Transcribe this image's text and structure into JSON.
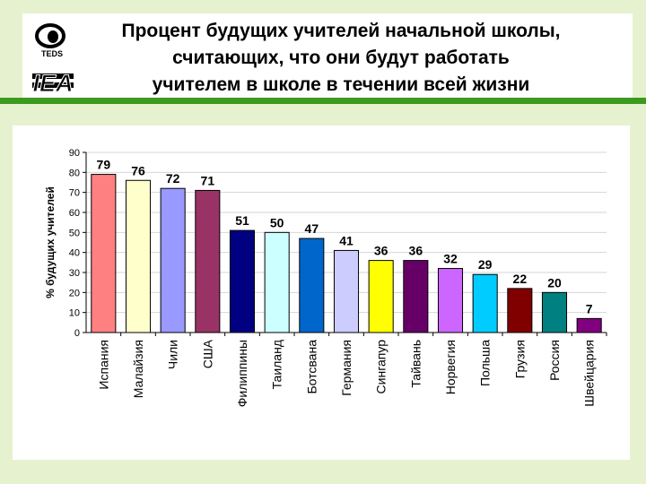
{
  "slide": {
    "title_lines": [
      "Процент будущих учителей начальной школы,",
      "считающих, что они будут  работать",
      "учителем в школе в течении всей жизни"
    ],
    "logos": {
      "teds": "TEDS",
      "iea": "IEA"
    }
  },
  "chart_data": {
    "type": "bar",
    "title": "",
    "xlabel": "",
    "ylabel": "% будущих учителей",
    "ylim": [
      0,
      90
    ],
    "yticks": [
      0,
      10,
      20,
      30,
      40,
      50,
      60,
      70,
      80,
      90
    ],
    "grid": true,
    "legend": "none",
    "categories": [
      "Испания",
      "Малайзия",
      "Чили",
      "США",
      "Филиппины",
      "Таиланд",
      "Ботсвана",
      "Германия",
      "Сингапур",
      "Тайвань",
      "Норвегия",
      "Польша",
      "Грузия",
      "Россия",
      "Швейцария"
    ],
    "values": [
      79,
      76,
      72,
      71,
      51,
      50,
      47,
      41,
      36,
      36,
      32,
      29,
      22,
      20,
      7
    ],
    "data_labels": [
      "79",
      "76",
      "72",
      "71",
      "51",
      "50",
      "47",
      "41",
      "36",
      "36",
      "32",
      "29",
      "22",
      "20",
      "7"
    ],
    "colors": [
      "#ff8080",
      "#ffffcc",
      "#9999ff",
      "#993366",
      "#000080",
      "#ccffff",
      "#0066cc",
      "#ccccff",
      "#ffff00",
      "#660066",
      "#cc66ff",
      "#00ccff",
      "#800000",
      "#008080",
      "#800080"
    ]
  }
}
